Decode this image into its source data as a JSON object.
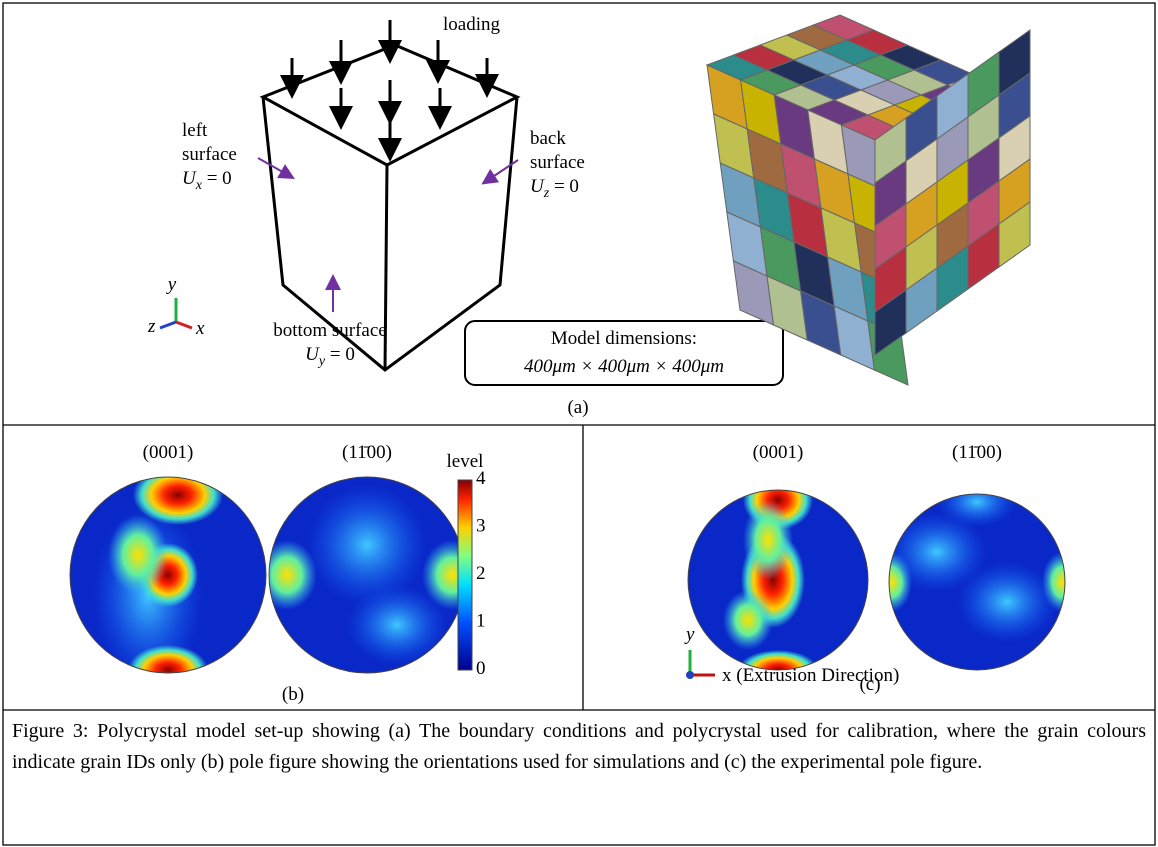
{
  "panel_a": {
    "loading": "loading",
    "left_surface": {
      "lines": [
        "left",
        "surface"
      ],
      "symbol": "U",
      "sub": "x",
      "rest": " = 0"
    },
    "back_surface": {
      "lines": [
        "back",
        "surface"
      ],
      "symbol": "U",
      "sub": "z",
      "rest": " = 0"
    },
    "bottom_surface": {
      "lines": [
        "bottom surface"
      ],
      "symbol": "U",
      "sub": "y",
      "rest": " = 0"
    },
    "axes": {
      "y": "y",
      "z": "z",
      "x": "x"
    },
    "dimensions": {
      "title": "Model dimensions:",
      "value": "400μm × 400μm × 400μm"
    },
    "label": "(a)"
  },
  "panel_b": {
    "pole_1": "(0001)",
    "pole_2": "(11̄00)",
    "colorbar_title": "level",
    "colorbar_ticks": [
      "0",
      "1",
      "2",
      "3",
      "4"
    ],
    "label": "(b)"
  },
  "panel_c": {
    "pole_1": "(0001)",
    "pole_2": "(11̄00)",
    "axis_y": "y",
    "axis_x": "x (Extrusion Direction)",
    "label": "(c)"
  },
  "caption": "Figure 3: Polycrystal model set-up showing (a) The boundary conditions and polycrystal used for calibration, where the grain colours indicate grain IDs only (b) pole figure showing the orientations used for simulations and (c) the experimental pole figure."
}
